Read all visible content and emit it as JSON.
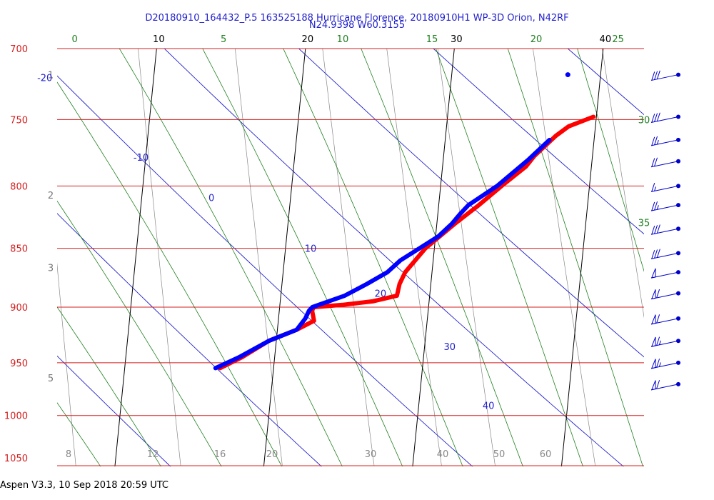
{
  "header": {
    "title_line1": "D20180910_164432_P.5 163525188 Hurricane Florence, 20180910H1 WP-3D Orion, N42RF",
    "title_line2": "N24.9398 W60.3155"
  },
  "footer": {
    "text": "Aspen V3.3, 10 Sep 2018  20:59 UTC"
  },
  "colors": {
    "pressure": "#d42020",
    "isotherm": "#000000",
    "dry_adiabat": "#2222cc",
    "moist_adiabat": "#208020",
    "mixing_ratio": "#888888",
    "temperature": "#ff0000",
    "dewpoint": "#0000ff",
    "wind": "#0000cc"
  },
  "chart_data": {
    "type": "skew-t",
    "pressure_axis": {
      "label_values": [
        700,
        750,
        800,
        850,
        900,
        950,
        1000,
        1050
      ],
      "labels": [
        "700",
        "750",
        "800",
        "850",
        "900",
        "950",
        "1000",
        "1050"
      ],
      "range": [
        700,
        1050
      ],
      "log_scale": true
    },
    "height_km_labels": [
      {
        "p": 718,
        "label": "1"
      },
      {
        "p": 807,
        "label": "2"
      },
      {
        "p": 866,
        "label": "3"
      },
      {
        "p": 964,
        "label": "5"
      }
    ],
    "isotherms": [
      {
        "t": 0,
        "label": "10"
      },
      {
        "t": 10,
        "label": "20"
      },
      {
        "t": 20,
        "label": "30"
      },
      {
        "t": 30,
        "label": "40"
      }
    ],
    "dry_adiabats": [
      {
        "label": "-20",
        "anchor_t": -3,
        "anchor_p": 720
      },
      {
        "label": "-10",
        "anchor_t": 4,
        "anchor_p": 778
      },
      {
        "label": "0",
        "anchor_t": 9,
        "anchor_p": 809
      },
      {
        "label": "10",
        "anchor_t": 16,
        "anchor_p": 850
      },
      {
        "label": "20",
        "anchor_t": 21,
        "anchor_p": 888
      },
      {
        "label": "30",
        "anchor_t": 26,
        "anchor_p": 935
      },
      {
        "label": "40",
        "anchor_t": 29,
        "anchor_p": 990
      }
    ],
    "moist_adiabats": [
      {
        "label": "0",
        "top_t": -5.5
      },
      {
        "label": "5",
        "top_t": 4.5
      },
      {
        "label": "10",
        "top_t": 12.5
      },
      {
        "label": "15",
        "top_t": 18.5
      },
      {
        "label": "20",
        "top_t": 25.5
      },
      {
        "label": "25",
        "top_t": 31
      },
      {
        "label": "30",
        "edge_p": 750
      },
      {
        "label": "35",
        "edge_p": 829
      }
    ],
    "mixing_ratio_labels": [
      "8",
      "12",
      "16",
      "20",
      "30",
      "40",
      "50",
      "60"
    ],
    "temperature": {
      "name": "Temperature",
      "points": [
        [
          748,
          29.8
        ],
        [
          755,
          28.2
        ],
        [
          762,
          27.4
        ],
        [
          770,
          26.7
        ],
        [
          777,
          26.1
        ],
        [
          785,
          25.6
        ],
        [
          800,
          24.1
        ],
        [
          815,
          22.7
        ],
        [
          830,
          21.2
        ],
        [
          850,
          19.4
        ],
        [
          870,
          18.2
        ],
        [
          880,
          17.9
        ],
        [
          890,
          17.8
        ],
        [
          895,
          16.2
        ],
        [
          898,
          14.2
        ],
        [
          900,
          12.3
        ],
        [
          903,
          12.2
        ],
        [
          912,
          12.4
        ],
        [
          920,
          11.3
        ],
        [
          930,
          9.5
        ],
        [
          945,
          7.8
        ],
        [
          955,
          6.4
        ]
      ]
    },
    "dewpoint": {
      "name": "Dewpoint",
      "points": [
        [
          765,
          27.0
        ],
        [
          780,
          25.7
        ],
        [
          800,
          23.8
        ],
        [
          815,
          22.0
        ],
        [
          822,
          21.5
        ],
        [
          830,
          21.0
        ],
        [
          840,
          20.2
        ],
        [
          850,
          19.0
        ],
        [
          860,
          17.8
        ],
        [
          870,
          17.0
        ],
        [
          880,
          15.7
        ],
        [
          890,
          14.3
        ],
        [
          898,
          12.6
        ],
        [
          900,
          12.2
        ],
        [
          903,
          12.0
        ],
        [
          910,
          11.8
        ],
        [
          920,
          11.3
        ],
        [
          930,
          9.5
        ],
        [
          945,
          7.6
        ],
        [
          955,
          6.1
        ]
      ]
    },
    "wind_barbs": [
      {
        "p": 718,
        "knots": 30
      },
      {
        "p": 748,
        "knots": 30
      },
      {
        "p": 765,
        "knots": 25
      },
      {
        "p": 781,
        "knots": 20
      },
      {
        "p": 800,
        "knots": 15
      },
      {
        "p": 815,
        "knots": 25
      },
      {
        "p": 834,
        "knots": 30
      },
      {
        "p": 854,
        "knots": 30
      },
      {
        "p": 870,
        "knots": 50
      },
      {
        "p": 888,
        "knots": 60
      },
      {
        "p": 910,
        "knots": 60
      },
      {
        "p": 930,
        "knots": 65
      },
      {
        "p": 950,
        "knots": 65
      },
      {
        "p": 970,
        "knots": 60
      }
    ],
    "isolated_points": [
      {
        "p": 718,
        "t": 27.8
      }
    ]
  }
}
